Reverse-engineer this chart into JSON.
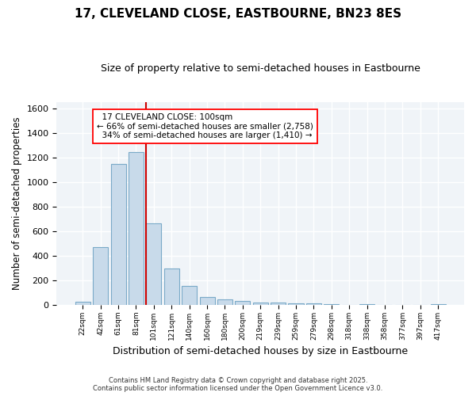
{
  "title": "17, CLEVELAND CLOSE, EASTBOURNE, BN23 8ES",
  "subtitle": "Size of property relative to semi-detached houses in Eastbourne",
  "xlabel": "Distribution of semi-detached houses by size in Eastbourne",
  "ylabel": "Number of semi-detached properties",
  "bar_labels": [
    "22sqm",
    "42sqm",
    "61sqm",
    "81sqm",
    "101sqm",
    "121sqm",
    "140sqm",
    "160sqm",
    "180sqm",
    "200sqm",
    "219sqm",
    "239sqm",
    "259sqm",
    "279sqm",
    "298sqm",
    "318sqm",
    "338sqm",
    "358sqm",
    "377sqm",
    "397sqm",
    "417sqm"
  ],
  "bar_values": [
    25,
    470,
    1145,
    1240,
    660,
    295,
    155,
    65,
    40,
    30,
    20,
    15,
    10,
    10,
    5,
    0,
    5,
    0,
    0,
    0,
    5
  ],
  "bar_color": "#c8daea",
  "bar_edgecolor": "#7aaac8",
  "highlight_bar_index": 4,
  "highlight_color": "#cc0000",
  "property_label": "17 CLEVELAND CLOSE: 100sqm",
  "pct_smaller": 66,
  "count_smaller": 2758,
  "pct_larger": 34,
  "count_larger": 1410,
  "ylim": [
    0,
    1650
  ],
  "yticks": [
    0,
    200,
    400,
    600,
    800,
    1000,
    1200,
    1400,
    1600
  ],
  "bg_color": "#ffffff",
  "plot_bg_color": "#f0f4f8",
  "footer": "Contains HM Land Registry data © Crown copyright and database right 2025.\nContains public sector information licensed under the Open Government Licence v3.0.",
  "title_fontsize": 11,
  "subtitle_fontsize": 9,
  "xlabel_fontsize": 9,
  "ylabel_fontsize": 8.5
}
